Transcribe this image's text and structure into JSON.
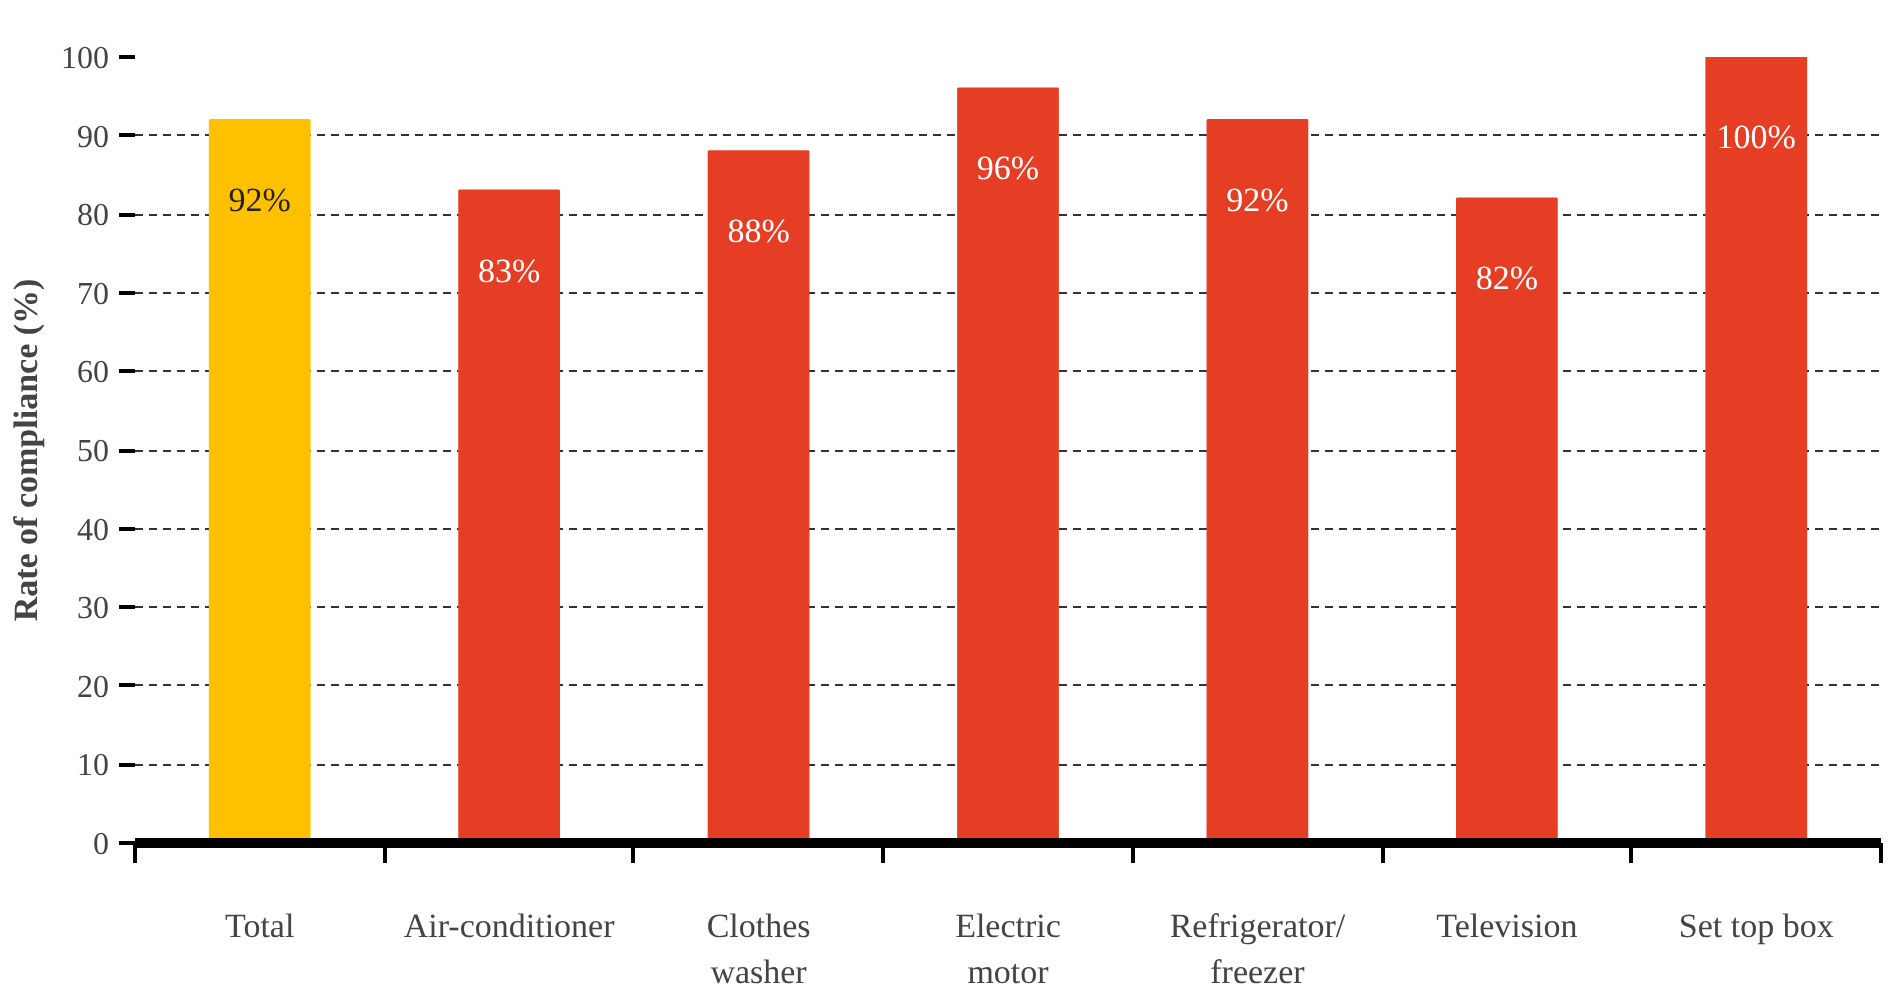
{
  "chart_data": {
    "type": "bar",
    "ylabel": "Rate of compliance (%)",
    "categories": [
      "Total",
      "Air-conditioner",
      "Clothes\nwasher",
      "Electric\nmotor",
      "Refrigerator/\nfreezer",
      "Television",
      "Set top box"
    ],
    "values": [
      92,
      83,
      88,
      96,
      92,
      82,
      100
    ],
    "colors": [
      "#ffc000",
      "#e63e24",
      "#e63e24",
      "#e63e24",
      "#e63e24",
      "#e63e24",
      "#e63e24"
    ],
    "value_labels": [
      "92%",
      "83%",
      "88%",
      "96%",
      "92%",
      "82%",
      "100%"
    ],
    "ylim": [
      0,
      100
    ],
    "yticks": [
      0,
      10,
      20,
      30,
      40,
      50,
      60,
      70,
      80,
      90,
      100
    ],
    "grid": "y"
  }
}
